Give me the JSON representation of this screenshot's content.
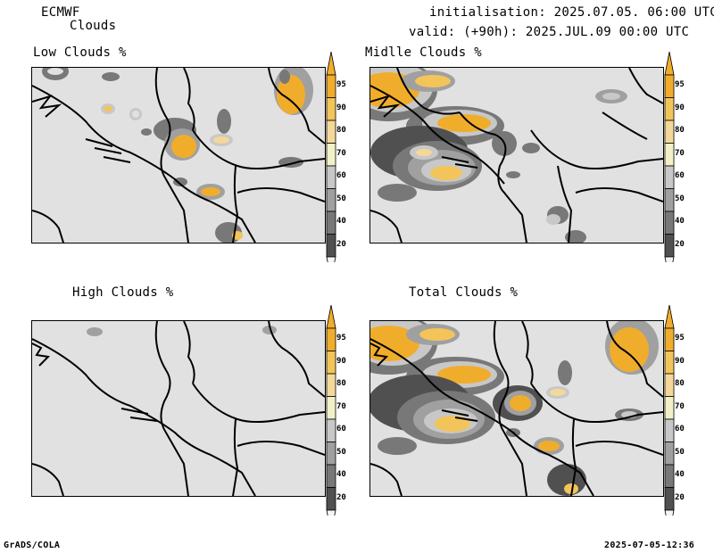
{
  "header": {
    "model": "ECMWF",
    "product": "Clouds",
    "initialisation": "initialisation: 2025.07.05. 06:00 UTC",
    "valid": "valid: (+90h): 2025.JUL.09 00:00 UTC"
  },
  "panels": {
    "low": "Low Clouds %",
    "middle": "Midlle Clouds %",
    "high": "High Clouds %",
    "total": "Total Clouds %"
  },
  "colorbar": {
    "labels": [
      "95",
      "90",
      "80",
      "70",
      "60",
      "50",
      "40",
      "20"
    ],
    "colors": {
      "c95": "#f0ad2c",
      "c90": "#f3c45a",
      "c80": "#f4d89a",
      "c70": "#f1f0c8",
      "c60": "#c8c8c8",
      "c50": "#a0a0a0",
      "c40": "#787878",
      "c20": "#505050",
      "bg": "#e1e1e1"
    }
  },
  "footer": {
    "software": "GrADS/COLA",
    "timestamp": "2025-07-05-12:36"
  }
}
